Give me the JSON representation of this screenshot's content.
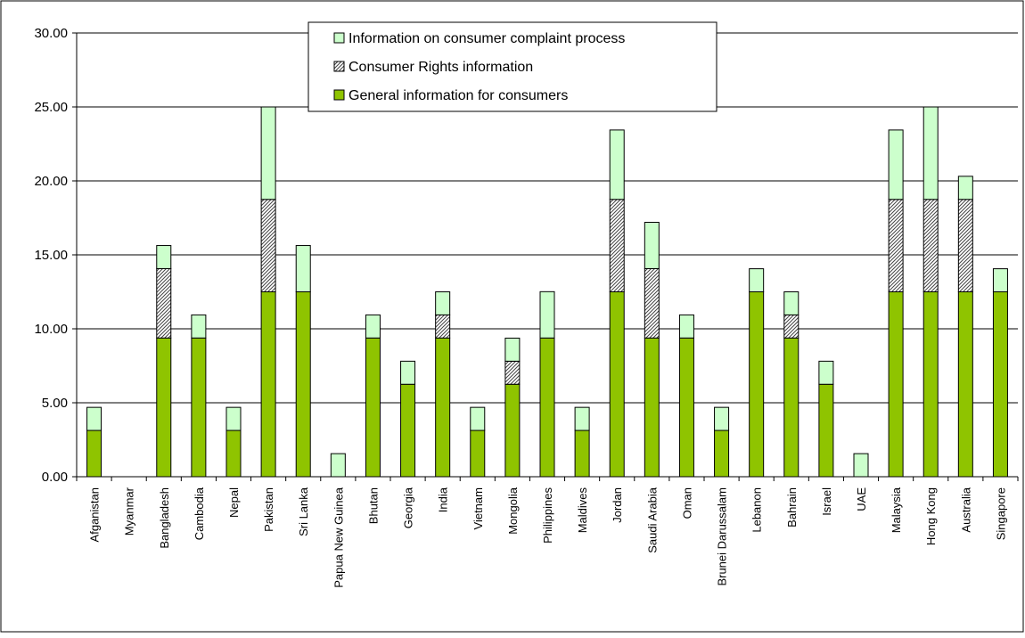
{
  "chart_data": {
    "type": "bar",
    "stacked": true,
    "title": "",
    "xlabel": "",
    "ylabel": "",
    "ylim": [
      0,
      30
    ],
    "yticks": [
      "0.00",
      "5.00",
      "10.00",
      "15.00",
      "20.00",
      "25.00",
      "30.00"
    ],
    "grid": true,
    "legend_position": "top-center",
    "categories": [
      "Afganistan",
      "Myanmar",
      "Bangladesh",
      "Cambodia",
      "Nepal",
      "Pakistan",
      "Sri Lanka",
      "Papua New Guinea",
      "Bhutan",
      "Georgia",
      "India",
      "Vietnam",
      "Mongolia",
      "Philippines",
      "Maldives",
      "Jordan",
      "Saudi Arabia",
      "Oman",
      "Brunei Darussalam",
      "Lebanon",
      "Bahrain",
      "Israel",
      "UAE",
      "Malaysia",
      "Hong Kong",
      "Australia",
      "Singapore"
    ],
    "series": [
      {
        "name": "General information for consumers",
        "color": "#8fc400",
        "pattern": "solid",
        "values": [
          3.13,
          0,
          9.38,
          9.38,
          3.13,
          12.5,
          12.5,
          0,
          9.38,
          6.25,
          9.38,
          3.13,
          6.25,
          9.38,
          3.13,
          12.5,
          9.38,
          9.38,
          3.13,
          12.5,
          9.38,
          6.25,
          0,
          12.5,
          12.5,
          12.5,
          12.5
        ]
      },
      {
        "name": "Consumer Rights information",
        "color": "#a0a0a0",
        "pattern": "hatched",
        "values": [
          0,
          0,
          4.69,
          0,
          0,
          6.25,
          0,
          0,
          0,
          0,
          1.56,
          0,
          1.56,
          0,
          0,
          6.25,
          4.69,
          0,
          0,
          0,
          1.56,
          0,
          0,
          6.25,
          6.25,
          6.25,
          0
        ]
      },
      {
        "name": "Information on consumer complaint process",
        "color": "#ccffcc",
        "pattern": "solid",
        "values": [
          1.56,
          0,
          1.56,
          1.56,
          1.56,
          6.25,
          3.13,
          1.56,
          1.56,
          1.56,
          1.56,
          1.56,
          1.56,
          3.13,
          1.56,
          4.69,
          3.13,
          1.56,
          1.56,
          1.56,
          1.56,
          1.56,
          1.56,
          4.69,
          6.25,
          1.56,
          1.56
        ]
      }
    ],
    "legend_order": [
      2,
      1,
      0
    ]
  }
}
